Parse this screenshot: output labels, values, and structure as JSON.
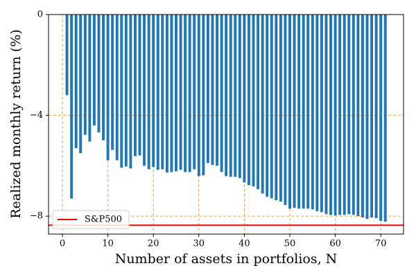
{
  "chart_data": {
    "type": "bar",
    "x": [
      1,
      2,
      3,
      4,
      5,
      6,
      7,
      8,
      9,
      10,
      11,
      12,
      13,
      14,
      15,
      16,
      17,
      18,
      19,
      20,
      21,
      22,
      23,
      24,
      25,
      26,
      27,
      28,
      29,
      30,
      31,
      32,
      33,
      34,
      35,
      36,
      37,
      38,
      39,
      40,
      41,
      42,
      43,
      44,
      45,
      46,
      47,
      48,
      49,
      50,
      51,
      52,
      53,
      54,
      55,
      56,
      57,
      58,
      59,
      60,
      61,
      62,
      63,
      64,
      65,
      66,
      67,
      68,
      69,
      70,
      71
    ],
    "values": [
      -3.2,
      -7.3,
      -5.3,
      -5.5,
      -4.77,
      -5.04,
      -4.4,
      -4.68,
      -4.99,
      -5.78,
      -5.37,
      -5.78,
      -6.08,
      -6.03,
      -6.1,
      -5.62,
      -5.59,
      -6.0,
      -6.14,
      -6.05,
      -6.16,
      -6.14,
      -6.27,
      -6.25,
      -6.22,
      -6.16,
      -6.25,
      -6.25,
      -6.14,
      -6.41,
      -6.38,
      -5.89,
      -5.97,
      -6.0,
      -6.25,
      -6.41,
      -6.44,
      -6.44,
      -6.49,
      -6.66,
      -6.77,
      -6.82,
      -6.93,
      -7.1,
      -7.23,
      -7.29,
      -7.37,
      -7.42,
      -7.56,
      -7.7,
      -7.67,
      -7.7,
      -7.7,
      -7.7,
      -7.73,
      -7.8,
      -7.84,
      -7.92,
      -7.95,
      -7.97,
      -7.95,
      -7.95,
      -7.92,
      -7.95,
      -8.0,
      -8.05,
      -8.11,
      -8.05,
      -8.08,
      -8.19,
      -8.22
    ],
    "color": "#1f77b4",
    "reference_line": {
      "name": "S&P500",
      "value": -8.36,
      "color": "#ff0000"
    },
    "xlabel": "Number of assets in portfolios, N",
    "ylabel": "Realized monthly return (%)",
    "xlim": [
      -3.05,
      75
    ],
    "xticks": [
      0,
      10,
      20,
      30,
      40,
      50,
      60,
      70
    ],
    "ylim": [
      -8.71,
      0
    ],
    "yticks": [
      {
        "value": 0,
        "label": "0"
      },
      {
        "value": -4,
        "label": "−4"
      },
      {
        "value": -8,
        "label": "−8"
      }
    ],
    "grid": true,
    "grid_color": "#f0a040",
    "legend": "lower left"
  }
}
